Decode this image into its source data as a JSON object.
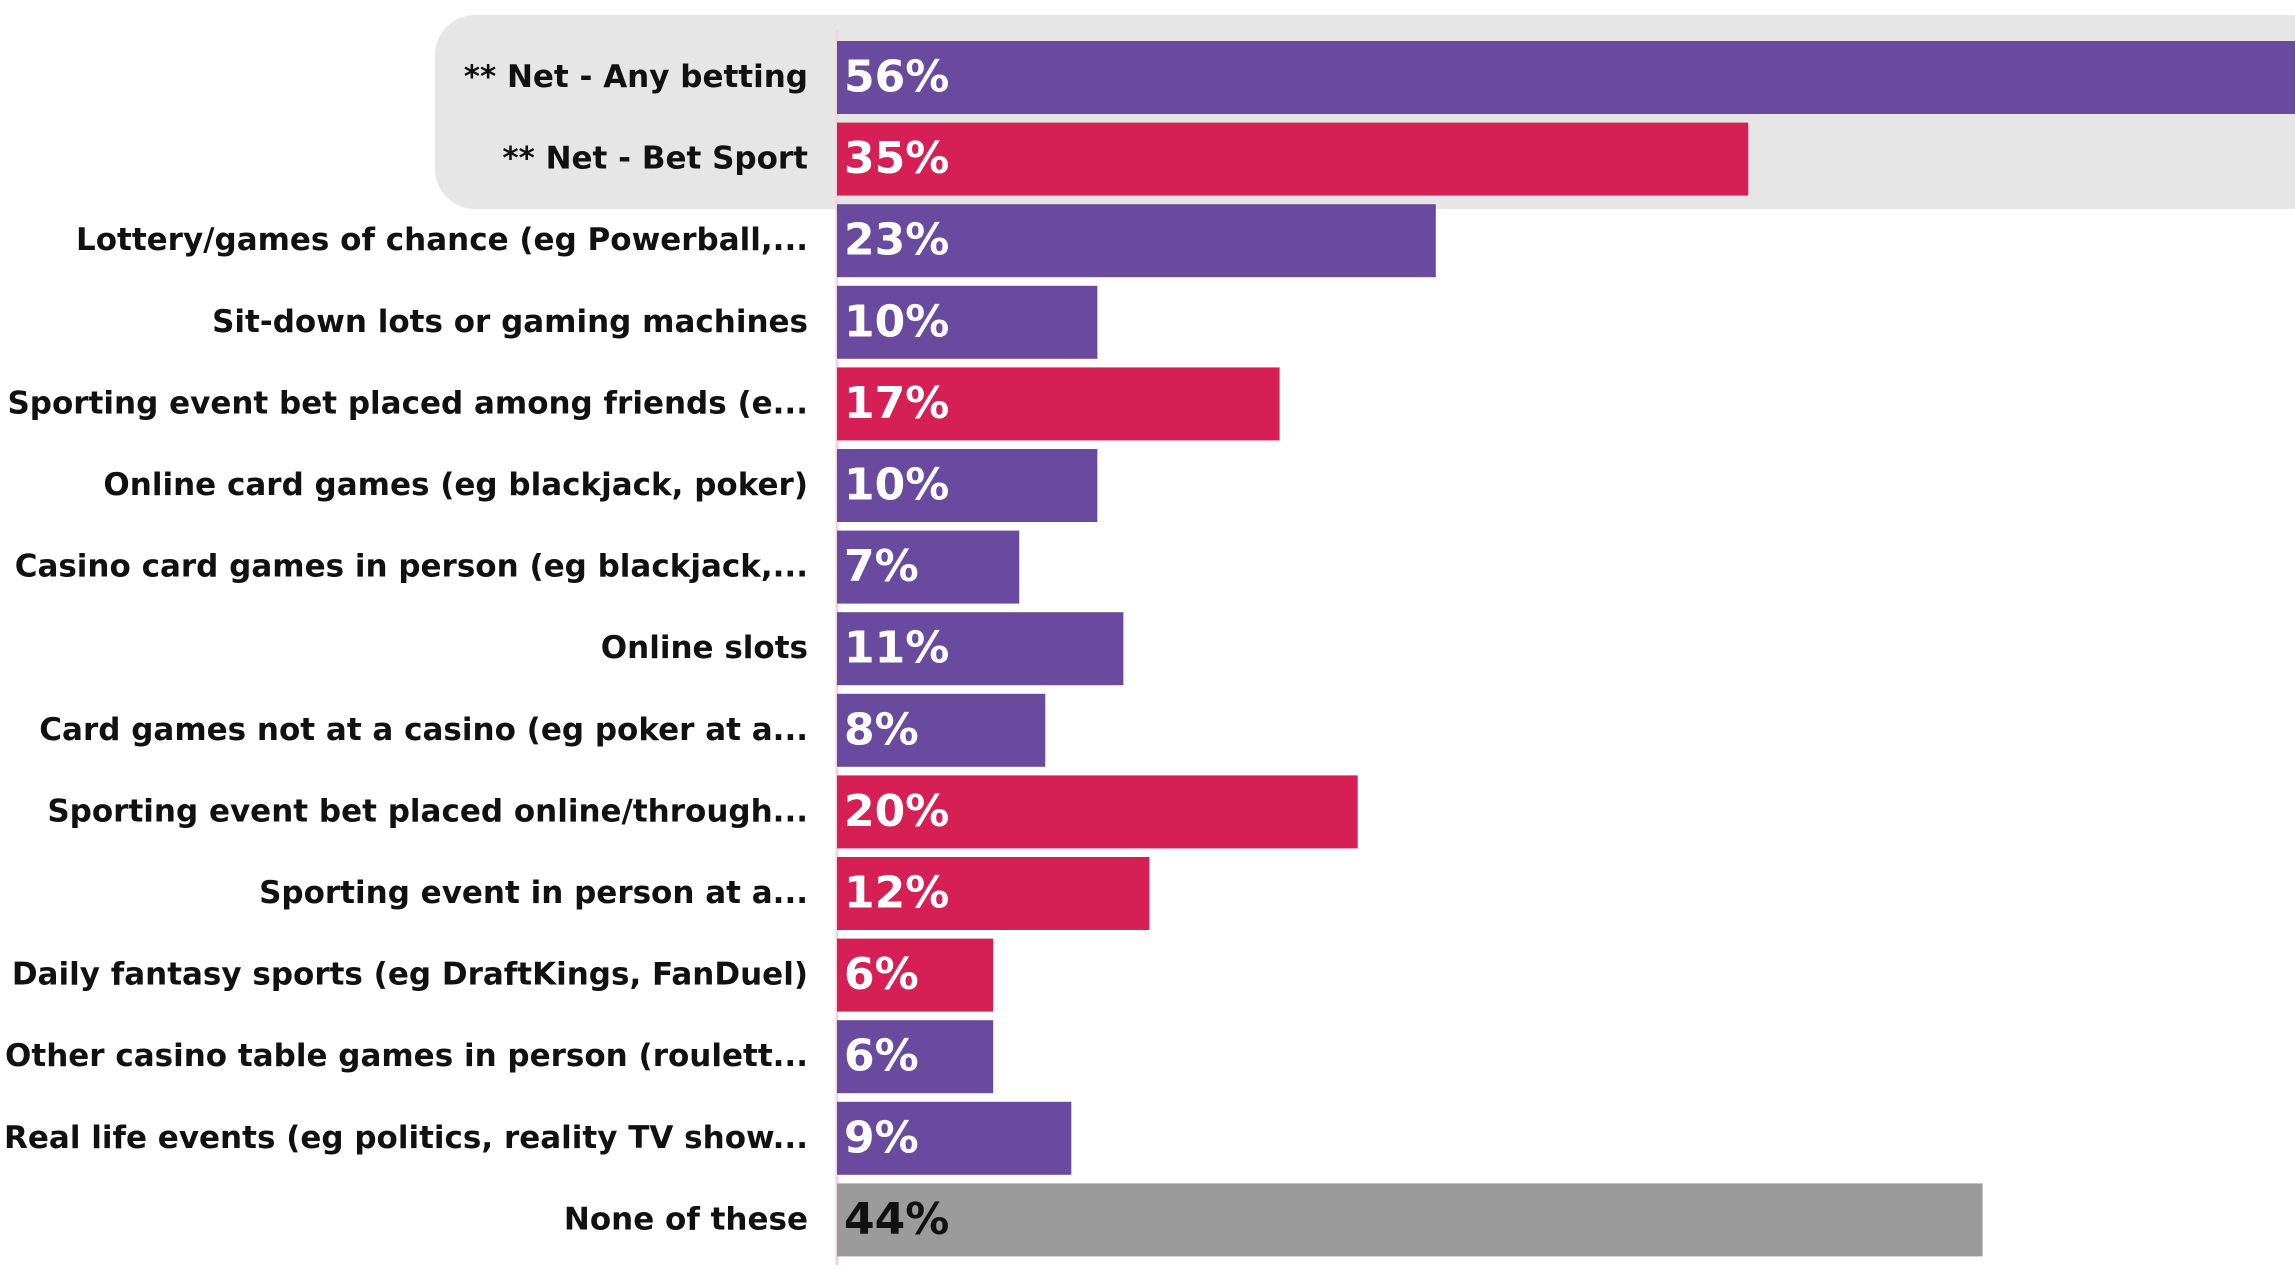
{
  "chart_data": {
    "type": "barh",
    "categories": [
      "** Net - Any betting",
      "** Net - Bet Sport",
      "Lottery/games of chance (eg Powerball,...",
      "Sit-down lots or gaming machines",
      "Sporting event bet placed among friends (e...",
      "Online card games (eg blackjack, poker)",
      "Casino card games in person (eg blackjack,...",
      "Online slots",
      "Card games not at a casino (eg poker at a...",
      "Sporting event bet placed online/through...",
      "Sporting event in person at a...",
      "Daily fantasy sports (eg DraftKings, FanDuel)",
      "Other casino table games in person (roulett...",
      "Real life events (eg politics, reality TV show...",
      "None of these"
    ],
    "values": [
      56,
      35,
      23,
      10,
      17,
      10,
      7,
      11,
      8,
      20,
      12,
      6,
      6,
      9,
      44
    ],
    "value_labels": [
      "56%",
      "35%",
      "23%",
      "10%",
      "17%",
      "10%",
      "7%",
      "11%",
      "8%",
      "20%",
      "12%",
      "6%",
      "6%",
      "9%",
      "44%"
    ],
    "colors": [
      "#6a4a9e",
      "#d61f54",
      "#6a4a9e",
      "#6a4a9e",
      "#d61f54",
      "#6a4a9e",
      "#6a4a9e",
      "#6a4a9e",
      "#6a4a9e",
      "#d61f54",
      "#d61f54",
      "#d61f54",
      "#6a4a9e",
      "#6a4a9e",
      "#9b9b9b"
    ],
    "xlim": [
      0,
      56
    ]
  }
}
